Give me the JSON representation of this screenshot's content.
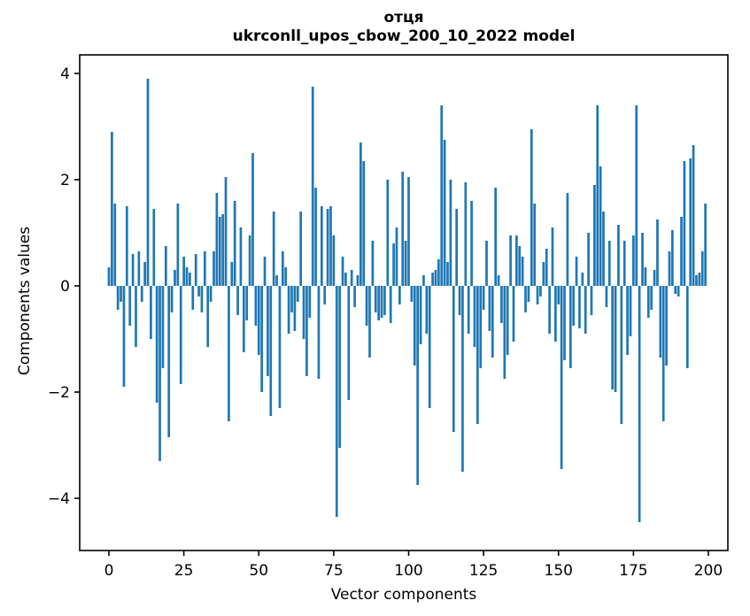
{
  "title_line1": "отця",
  "title_line2": "ukrconll_upos_cbow_200_10_2022 model",
  "chart_data": {
    "type": "bar",
    "title": "отця",
    "subtitle": "ukrconll_upos_cbow_200_10_2022 model",
    "xlabel": "Vector components",
    "ylabel": "Components values",
    "x_start": 0,
    "n_bars": 200,
    "x_ticks": [
      0,
      25,
      50,
      75,
      100,
      125,
      150,
      175,
      200
    ],
    "y_ticks": [
      -4,
      -2,
      0,
      2,
      4
    ],
    "xlim": [
      -10,
      206.5
    ],
    "ylim": [
      -4.98,
      4.35
    ],
    "grid": false,
    "legend": null,
    "bar_color": "#1f77b4",
    "values": [
      0.35,
      2.9,
      1.55,
      -0.45,
      -0.3,
      -1.9,
      1.5,
      -0.75,
      0.6,
      -1.15,
      0.65,
      -0.3,
      0.45,
      3.9,
      -1.0,
      1.45,
      -2.2,
      -3.3,
      -1.55,
      0.75,
      -2.85,
      -0.5,
      0.3,
      1.55,
      -1.85,
      0.55,
      0.35,
      0.25,
      -0.45,
      0.6,
      -0.2,
      -0.5,
      0.65,
      -1.15,
      -0.3,
      0.65,
      1.75,
      1.3,
      1.35,
      2.05,
      -2.55,
      0.45,
      1.6,
      -0.55,
      1.1,
      -1.25,
      -0.65,
      0.95,
      2.5,
      -0.75,
      -1.3,
      -2.0,
      0.55,
      -1.7,
      -2.45,
      1.4,
      0.2,
      -2.3,
      0.65,
      0.35,
      -0.9,
      -0.5,
      -0.85,
      -0.3,
      1.4,
      -1.0,
      -1.7,
      -0.6,
      3.75,
      1.85,
      -1.75,
      1.5,
      -0.35,
      1.45,
      1.5,
      0.95,
      -4.35,
      -3.05,
      0.55,
      0.25,
      -2.15,
      0.3,
      -0.4,
      0.2,
      2.7,
      2.35,
      -0.75,
      -1.35,
      0.85,
      -0.5,
      -0.65,
      -0.6,
      -0.55,
      2.0,
      -0.7,
      0.8,
      1.1,
      -0.35,
      2.15,
      0.85,
      2.05,
      -0.3,
      -1.5,
      -3.75,
      -1.1,
      0.2,
      -0.9,
      -2.3,
      0.25,
      0.3,
      0.5,
      3.4,
      2.75,
      0.45,
      2.0,
      -2.75,
      1.45,
      -0.55,
      -3.5,
      1.95,
      -0.9,
      1.6,
      -1.15,
      -2.6,
      -1.55,
      -0.45,
      0.85,
      -0.85,
      -1.35,
      1.85,
      0.2,
      -0.7,
      -1.75,
      -1.3,
      0.95,
      -1.05,
      0.95,
      0.75,
      0.55,
      -0.5,
      -0.3,
      2.95,
      1.55,
      -0.35,
      -0.2,
      0.45,
      0.7,
      -0.9,
      1.1,
      -1.05,
      -0.35,
      -3.45,
      -1.4,
      1.75,
      -1.55,
      -0.75,
      0.55,
      -0.8,
      0.25,
      -0.9,
      1.0,
      -0.55,
      1.9,
      3.4,
      2.25,
      1.4,
      -0.4,
      0.85,
      -1.95,
      -2.0,
      1.15,
      -2.6,
      0.85,
      -1.3,
      -0.95,
      0.95,
      3.4,
      -4.45,
      1.0,
      0.35,
      -0.6,
      -0.45,
      0.3,
      1.25,
      -1.35,
      -2.55,
      -1.5,
      0.65,
      1.05,
      -0.15,
      -0.2,
      1.3,
      2.35,
      -1.55,
      2.4,
      2.65,
      0.2,
      0.25,
      0.65,
      1.55
    ]
  }
}
